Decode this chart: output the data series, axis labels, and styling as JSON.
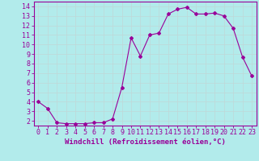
{
  "x": [
    0,
    1,
    2,
    3,
    4,
    5,
    6,
    7,
    8,
    9,
    10,
    11,
    12,
    13,
    14,
    15,
    16,
    17,
    18,
    19,
    20,
    21,
    22,
    23
  ],
  "y": [
    4.0,
    3.3,
    1.8,
    1.7,
    1.7,
    1.7,
    1.8,
    1.8,
    2.2,
    5.5,
    10.7,
    8.8,
    11.0,
    11.2,
    13.2,
    13.7,
    13.9,
    13.2,
    13.2,
    13.3,
    13.0,
    11.7,
    8.7,
    6.7
  ],
  "line_color": "#990099",
  "marker": "D",
  "markersize": 2.0,
  "linewidth": 0.8,
  "bg_color": "#b2ebeb",
  "plot_bg_color": "#b2ebeb",
  "grid_color": "#c0d8d8",
  "xlabel": "Windchill (Refroidissement éolien,°C)",
  "xlim": [
    -0.5,
    23.5
  ],
  "ylim": [
    1.5,
    14.5
  ],
  "yticks": [
    2,
    3,
    4,
    5,
    6,
    7,
    8,
    9,
    10,
    11,
    12,
    13,
    14
  ],
  "xticks": [
    0,
    1,
    2,
    3,
    4,
    5,
    6,
    7,
    8,
    9,
    10,
    11,
    12,
    13,
    14,
    15,
    16,
    17,
    18,
    19,
    20,
    21,
    22,
    23
  ],
  "tick_color": "#990099",
  "axis_color": "#990099",
  "label_color": "#990099",
  "xlabel_fontsize": 6.5,
  "tick_fontsize": 6.0
}
